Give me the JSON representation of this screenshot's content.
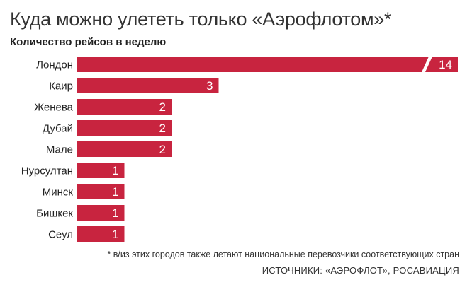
{
  "header": {
    "title": "Куда можно улететь только «Аэрофлотом»*",
    "subtitle": "Количество рейсов в неделю"
  },
  "footer": {
    "note": "* в/из этих городов также летают национальные перевозчики соответствующих стран",
    "sources": "ИСТОЧНИКИ: «АЭРОФЛОТ», РОСАВИАЦИЯ"
  },
  "chart_data": {
    "type": "bar",
    "orientation": "horizontal",
    "title": "Куда можно улететь только «Аэрофлотом»*",
    "subtitle": "Количество рейсов в неделю",
    "categories": [
      "Лондон",
      "Каир",
      "Женева",
      "Дубай",
      "Мале",
      "Нурсултан",
      "Минск",
      "Бишкек",
      "Сеул"
    ],
    "values": [
      14,
      3,
      2,
      2,
      2,
      1,
      1,
      1,
      1
    ],
    "broken_axis_categories": [
      "Лондон"
    ],
    "bar_color": "#c8243f",
    "label_color": "#ffffff",
    "grid": false,
    "legend": "none"
  }
}
